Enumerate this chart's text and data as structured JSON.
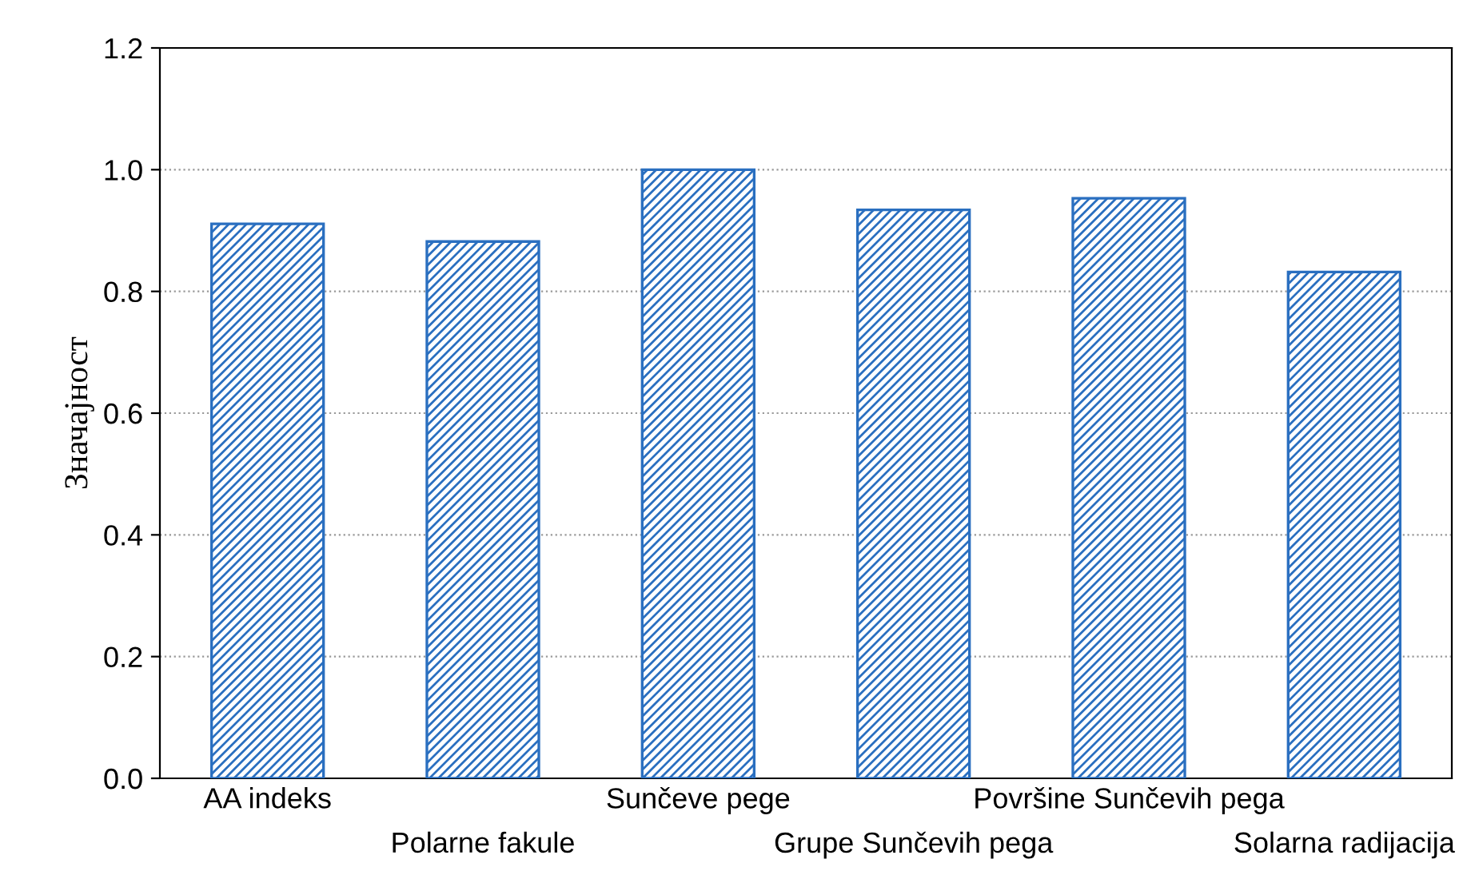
{
  "chart_data": {
    "type": "bar",
    "ylabel": "Значајност",
    "categories": [
      "AA indeks",
      "Polarne fakule",
      "Sunčeve pege",
      "Grupe Sunčevih pega",
      "Površine Sunčevih pega",
      "Solarna radijacija"
    ],
    "values": [
      0.911,
      0.882,
      1.0,
      0.934,
      0.953,
      0.832
    ],
    "color": "#2a6fc0",
    "ylim": [
      0,
      1.2
    ],
    "yticks": [
      {
        "value": 0,
        "label": "0.0"
      },
      {
        "value": 0.2,
        "label": "0.2"
      },
      {
        "value": 0.4,
        "label": "0.4"
      },
      {
        "value": 0.6,
        "label": "0.6"
      },
      {
        "value": 0.8,
        "label": "0.8"
      },
      {
        "value": 1.0,
        "label": "1.0"
      },
      {
        "value": 1.2,
        "label": "1.2"
      }
    ],
    "grid": "y"
  }
}
